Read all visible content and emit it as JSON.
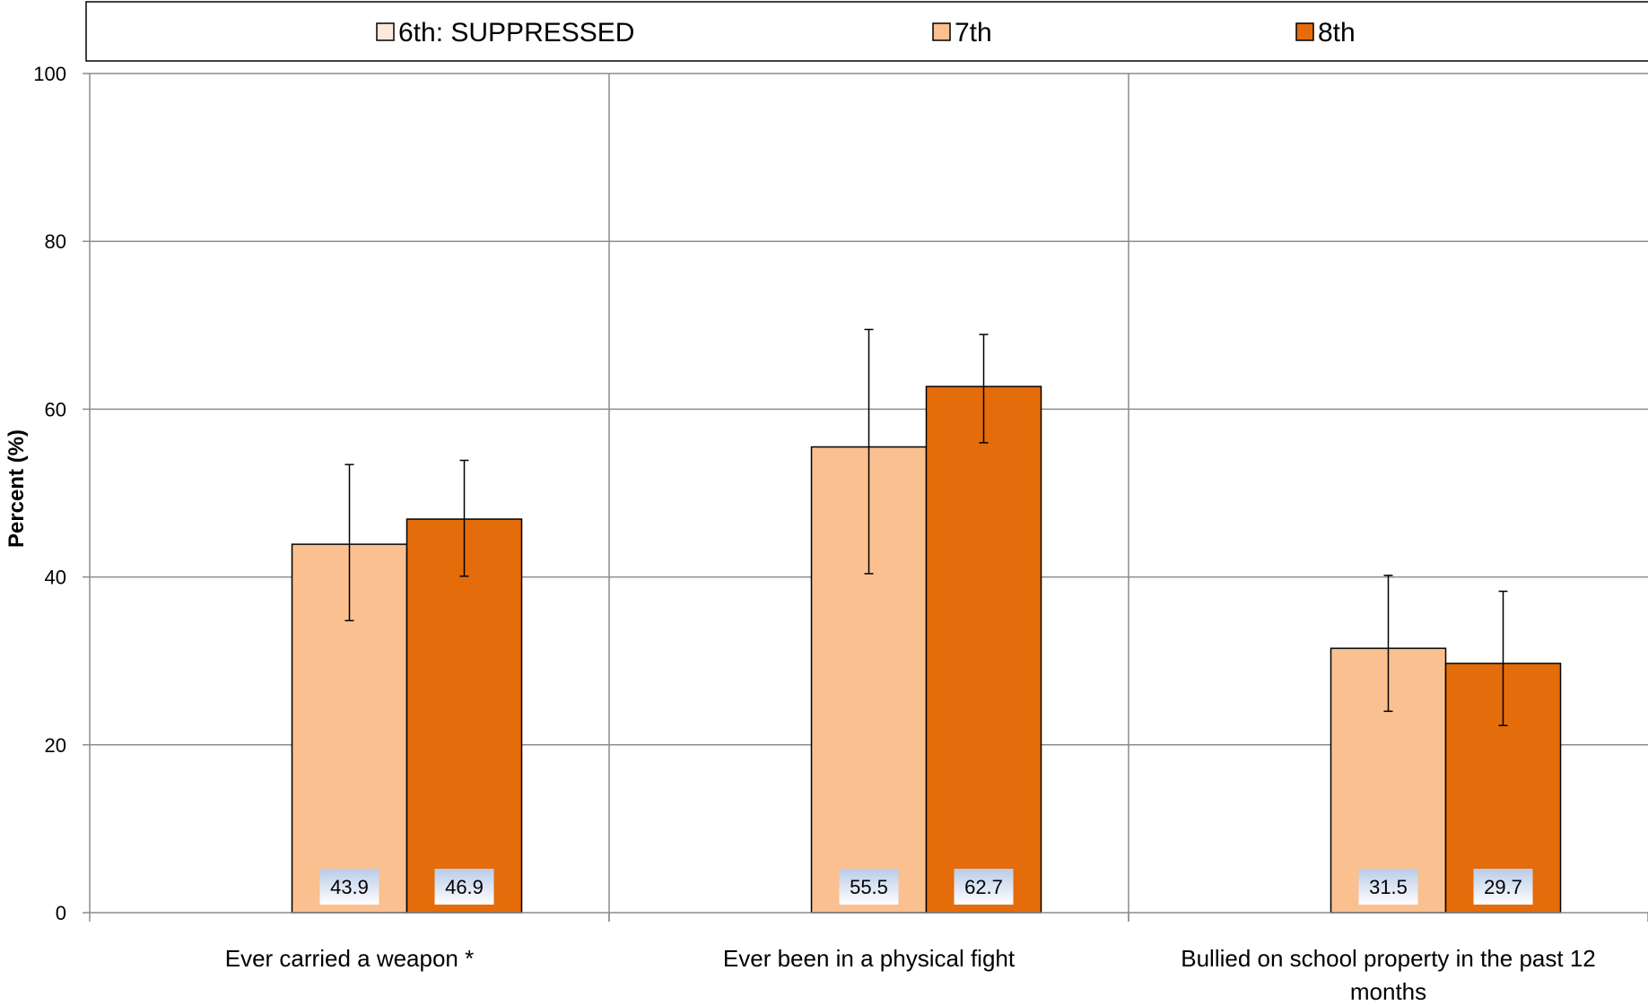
{
  "chart_data": {
    "type": "bar",
    "categories": [
      [
        "Ever carried a weapon *"
      ],
      [
        "Ever been in a physical fight"
      ],
      [
        "Bullied on school property in the past 12",
        "months"
      ]
    ],
    "series": [
      {
        "name": "6th: SUPPRESSED",
        "color": "#fde9dc",
        "values": [
          null,
          null,
          null
        ],
        "error_low": [
          null,
          null,
          null
        ],
        "error_high": [
          null,
          null,
          null
        ]
      },
      {
        "name": "7th",
        "color": "#fac090",
        "values": [
          43.9,
          55.5,
          31.5
        ],
        "error_low": [
          34.8,
          40.4,
          24.0
        ],
        "error_high": [
          53.4,
          69.5,
          40.2
        ]
      },
      {
        "name": "8th",
        "color": "#e46c0a",
        "values": [
          46.9,
          62.7,
          29.7
        ],
        "error_low": [
          40.1,
          56.0,
          22.3
        ],
        "error_high": [
          53.9,
          68.9,
          38.3
        ]
      }
    ],
    "data_labels": [
      [
        "43.9",
        "55.5",
        "31.5"
      ],
      [
        "46.9",
        "62.7",
        "29.7"
      ]
    ],
    "ylabel": "Percent (%)",
    "ylim": [
      0,
      100
    ],
    "yticks": [
      "0",
      "20",
      "40",
      "60",
      "80",
      "100"
    ],
    "grid": true,
    "legend_position": "top"
  }
}
